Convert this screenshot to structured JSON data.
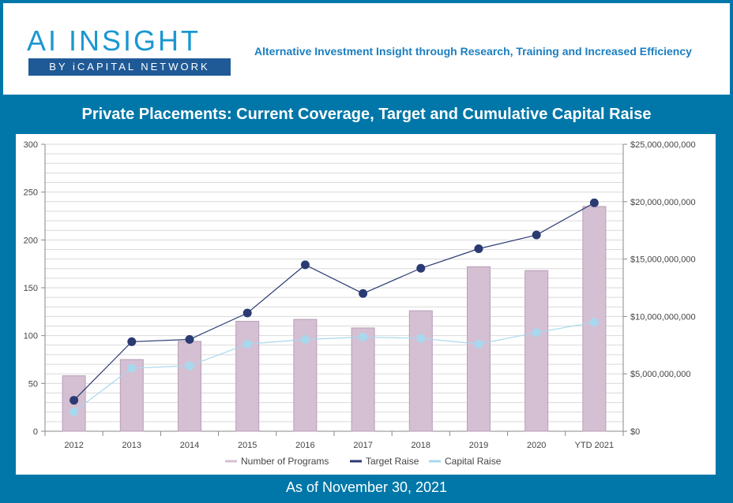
{
  "header": {
    "logo_title": "AI INSIGHT",
    "logo_subtitle": "BY iCAPITAL NETWORK",
    "tagline": "Alternative Investment Insight through Research, Training and Increased Efficiency"
  },
  "footer": {
    "note": "As of November 30, 2021"
  },
  "colors": {
    "background": "#0077a8",
    "bar": "#d5bfd3",
    "bar_border": "#b8a0b6",
    "target_line": "#2b3a72",
    "capital_line": "#a8d8ee",
    "grid": "#d9d9d9"
  },
  "chart_data": {
    "type": "bar",
    "title": "Private Placements: Current Coverage, Target and Cumulative Capital Raise",
    "categories": [
      "2012",
      "2013",
      "2014",
      "2015",
      "2016",
      "2017",
      "2018",
      "2019",
      "2020",
      "YTD 2021"
    ],
    "left_axis": {
      "min": 0,
      "max": 300,
      "ticks": [
        0,
        50,
        100,
        150,
        200,
        250,
        300
      ],
      "tick_labels": [
        "0",
        "50",
        "100",
        "150",
        "200",
        "250",
        "300"
      ]
    },
    "right_axis": {
      "min": 0,
      "max": 25000000000,
      "ticks": [
        0,
        5000000000,
        10000000000,
        15000000000,
        20000000000,
        25000000000
      ],
      "tick_labels": [
        "$0",
        "$5,000,000,000",
        "$10,000,000,000",
        "$15,000,000,000",
        "$20,000,000,000",
        "$25,000,000,000"
      ]
    },
    "series": [
      {
        "name": "Number of Programs",
        "type": "bar",
        "axis": "left",
        "values": [
          58,
          75,
          94,
          115,
          117,
          108,
          126,
          172,
          168,
          235
        ]
      },
      {
        "name": "Target Raise",
        "type": "line",
        "axis": "right",
        "values": [
          2700000000,
          7800000000,
          8000000000,
          10300000000,
          14500000000,
          12000000000,
          14200000000,
          15900000000,
          17100000000,
          19900000000
        ]
      },
      {
        "name": "Capital Raise",
        "type": "line",
        "axis": "right",
        "values": [
          1700000000,
          5500000000,
          5700000000,
          7600000000,
          8000000000,
          8200000000,
          8100000000,
          7600000000,
          8600000000,
          9500000000
        ]
      }
    ],
    "grid": true,
    "legend_position": "bottom"
  }
}
